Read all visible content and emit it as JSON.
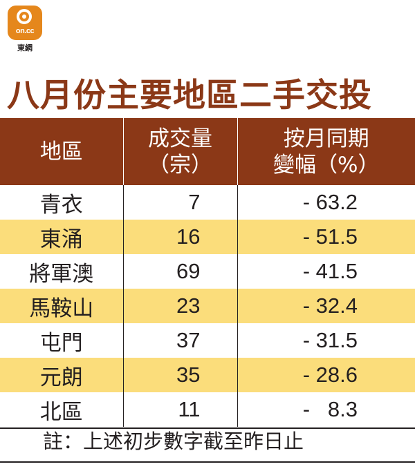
{
  "logo": {
    "mark_text": "on.cc",
    "caption": "東網"
  },
  "title": "八月份主要地區二手交投",
  "table": {
    "headers": [
      {
        "line1": "地區",
        "line2": ""
      },
      {
        "line1": "成交量",
        "line2": "（宗）"
      },
      {
        "line1": "按月同期",
        "line2": "變幅（%）"
      }
    ],
    "rows": [
      {
        "district": "青衣",
        "volume": "7",
        "change": "- 63.2"
      },
      {
        "district": "東涌",
        "volume": "16",
        "change": "- 51.5"
      },
      {
        "district": "將軍澳",
        "volume": "69",
        "change": "- 41.5"
      },
      {
        "district": "馬鞍山",
        "volume": "23",
        "change": "- 32.4"
      },
      {
        "district": "屯門",
        "volume": "37",
        "change": "- 31.5"
      },
      {
        "district": "元朗",
        "volume": "35",
        "change": "- 28.6"
      },
      {
        "district": "北區",
        "volume": "11",
        "change": "-   8.3"
      }
    ]
  },
  "note": "註：上述初步數字截至昨日止",
  "colors": {
    "brand_orange": "#e5871c",
    "title_brown": "#8b3817",
    "header_bg": "#8b3817",
    "stripe_yellow": "#fbdd7b"
  }
}
